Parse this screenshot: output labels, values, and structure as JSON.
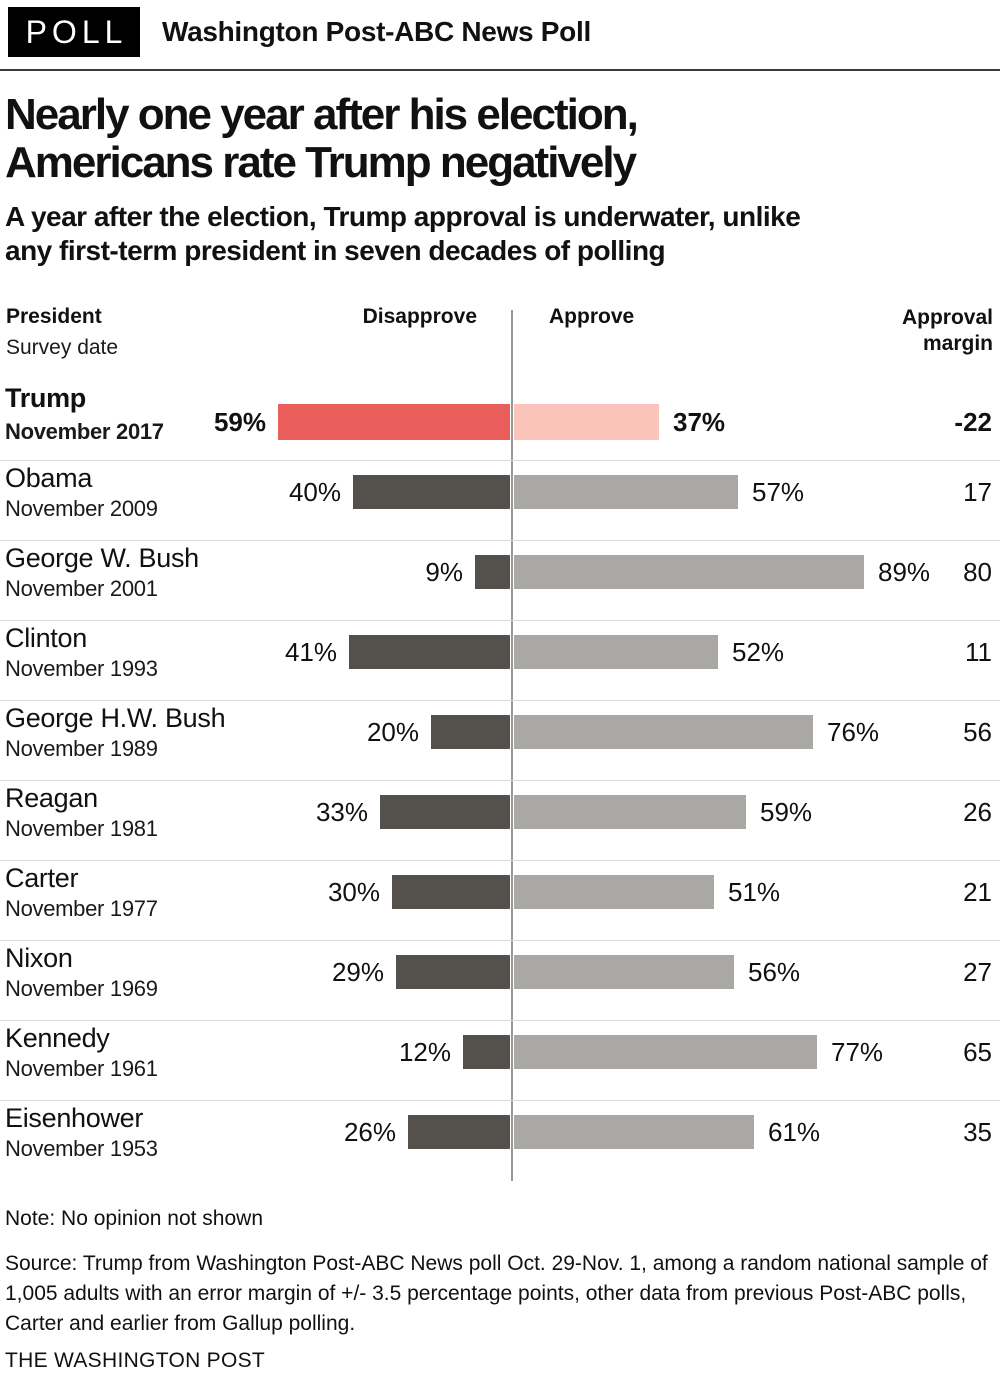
{
  "kicker": {
    "badge": "POLL",
    "title": "Washington Post-ABC News Poll"
  },
  "headline": {
    "line1": "Nearly one year after his election,",
    "line2": "Americans rate Trump negatively"
  },
  "subhead": {
    "line1": "A year after the election, Trump approval is underwater, unlike",
    "line2": "any first-term president in seven decades of polling"
  },
  "columns": {
    "president": "President",
    "survey_date": "Survey date",
    "disapprove": "Disapprove",
    "approve": "Approve",
    "margin_line1": "Approval",
    "margin_line2": "margin"
  },
  "chart_data": {
    "type": "bar",
    "orientation": "horizontal-diverging",
    "title": "Nearly one year after his election, Americans rate Trump negatively",
    "series": [
      {
        "name": "Disapprove",
        "side": "left"
      },
      {
        "name": "Approve",
        "side": "right"
      }
    ],
    "rows": [
      {
        "president": "Trump",
        "date": "November 2017",
        "disapprove": 59,
        "approve": 37,
        "margin": "-22",
        "highlight": true
      },
      {
        "president": "Obama",
        "date": "November 2009",
        "disapprove": 40,
        "approve": 57,
        "margin": "17"
      },
      {
        "president": "George W. Bush",
        "date": "November 2001",
        "disapprove": 9,
        "approve": 89,
        "margin": "80"
      },
      {
        "president": "Clinton",
        "date": "November 1993",
        "disapprove": 41,
        "approve": 52,
        "margin": "11"
      },
      {
        "president": "George H.W. Bush",
        "date": "November 1989",
        "disapprove": 20,
        "approve": 76,
        "margin": "56"
      },
      {
        "president": "Reagan",
        "date": "November 1981",
        "disapprove": 33,
        "approve": 59,
        "margin": "26"
      },
      {
        "president": "Carter",
        "date": "November 1977",
        "disapprove": 30,
        "approve": 51,
        "margin": "21"
      },
      {
        "president": "Nixon",
        "date": "November 1969",
        "disapprove": 29,
        "approve": 56,
        "margin": "27"
      },
      {
        "president": "Kennedy",
        "date": "November 1961",
        "disapprove": 12,
        "approve": 77,
        "margin": "65"
      },
      {
        "president": "Eisenhower",
        "date": "November 1953",
        "disapprove": 26,
        "approve": 61,
        "margin": "35"
      }
    ],
    "colors": {
      "trump_disapprove": "#e95e5a",
      "trump_approve": "#fbc4bb",
      "disapprove": "#54514d",
      "approve": "#a9a8a4",
      "center_line": "#999999",
      "separator": "#dcdcdc"
    },
    "value_unit": "%",
    "axis_note": "bars diverge from a shared center axis; no opinion not shown"
  },
  "footer": {
    "note": "Note: No opinion not shown",
    "source": "Source: Trump from Washington Post-ABC News poll Oct. 29-Nov. 1, among a random national sample of 1,005 adults with an error margin of +/- 3.5 percentage points, other data from previous Post-ABC polls, Carter and earlier from Gallup polling.",
    "credit": "THE WASHINGTON POST"
  }
}
